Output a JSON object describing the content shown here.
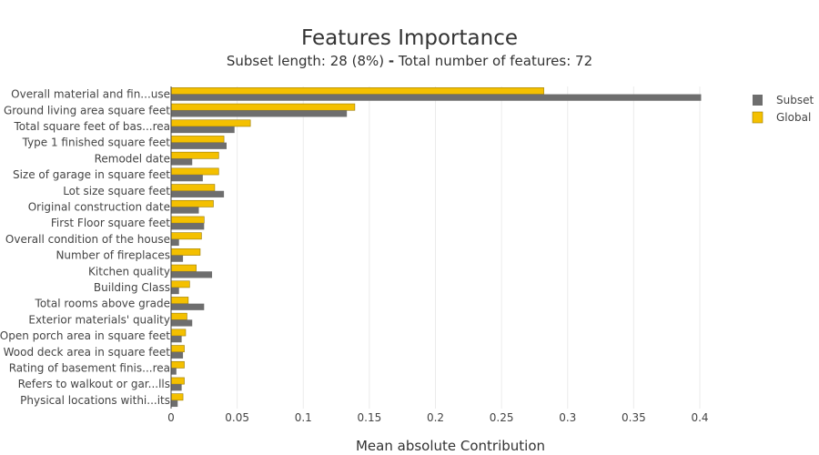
{
  "chart_data": {
    "type": "bar",
    "orientation": "horizontal",
    "title": "Features Importance",
    "subtitle_left": "Subset length: 28 (8%)",
    "subtitle_sep": "-",
    "subtitle_right": "Total number of features: 72",
    "xlabel": "Mean absolute Contribution",
    "ylabel": "",
    "xlim": [
      0,
      0.42
    ],
    "xticks": [
      0,
      0.05,
      0.1,
      0.15,
      0.2,
      0.25,
      0.3,
      0.35,
      0.4
    ],
    "xtick_labels": [
      "0",
      "0.05",
      "0.1",
      "0.15",
      "0.2",
      "0.25",
      "0.3",
      "0.35",
      "0.4"
    ],
    "grid": true,
    "legend_position": "top-right",
    "categories": [
      "Overall material and fin...use",
      "Ground living area square feet",
      "Total square feet of bas...rea",
      "Type 1 finished square feet",
      "Remodel date",
      "Size of garage in square feet",
      "Lot size square feet",
      "Original construction date",
      "First Floor square feet",
      "Overall condition of the house",
      "Number of fireplaces",
      "Kitchen quality",
      "Building Class",
      "Total rooms above grade",
      "Exterior materials' quality",
      "Open porch area in square feet",
      "Wood deck area in square feet",
      "Rating of basement finis...rea",
      "Refers to walkout or gar...lls",
      "Physical locations withi...its"
    ],
    "series": [
      {
        "name": "Subset",
        "color": "#6e6e6e",
        "values": [
          0.401,
          0.133,
          0.048,
          0.042,
          0.016,
          0.024,
          0.04,
          0.021,
          0.025,
          0.006,
          0.009,
          0.031,
          0.006,
          0.025,
          0.016,
          0.008,
          0.009,
          0.004,
          0.008,
          0.005
        ]
      },
      {
        "name": "Global",
        "color": "#f4c000",
        "values": [
          0.282,
          0.139,
          0.06,
          0.04,
          0.036,
          0.036,
          0.033,
          0.032,
          0.025,
          0.023,
          0.022,
          0.019,
          0.014,
          0.013,
          0.012,
          0.011,
          0.01,
          0.01,
          0.01,
          0.009
        ]
      }
    ]
  }
}
